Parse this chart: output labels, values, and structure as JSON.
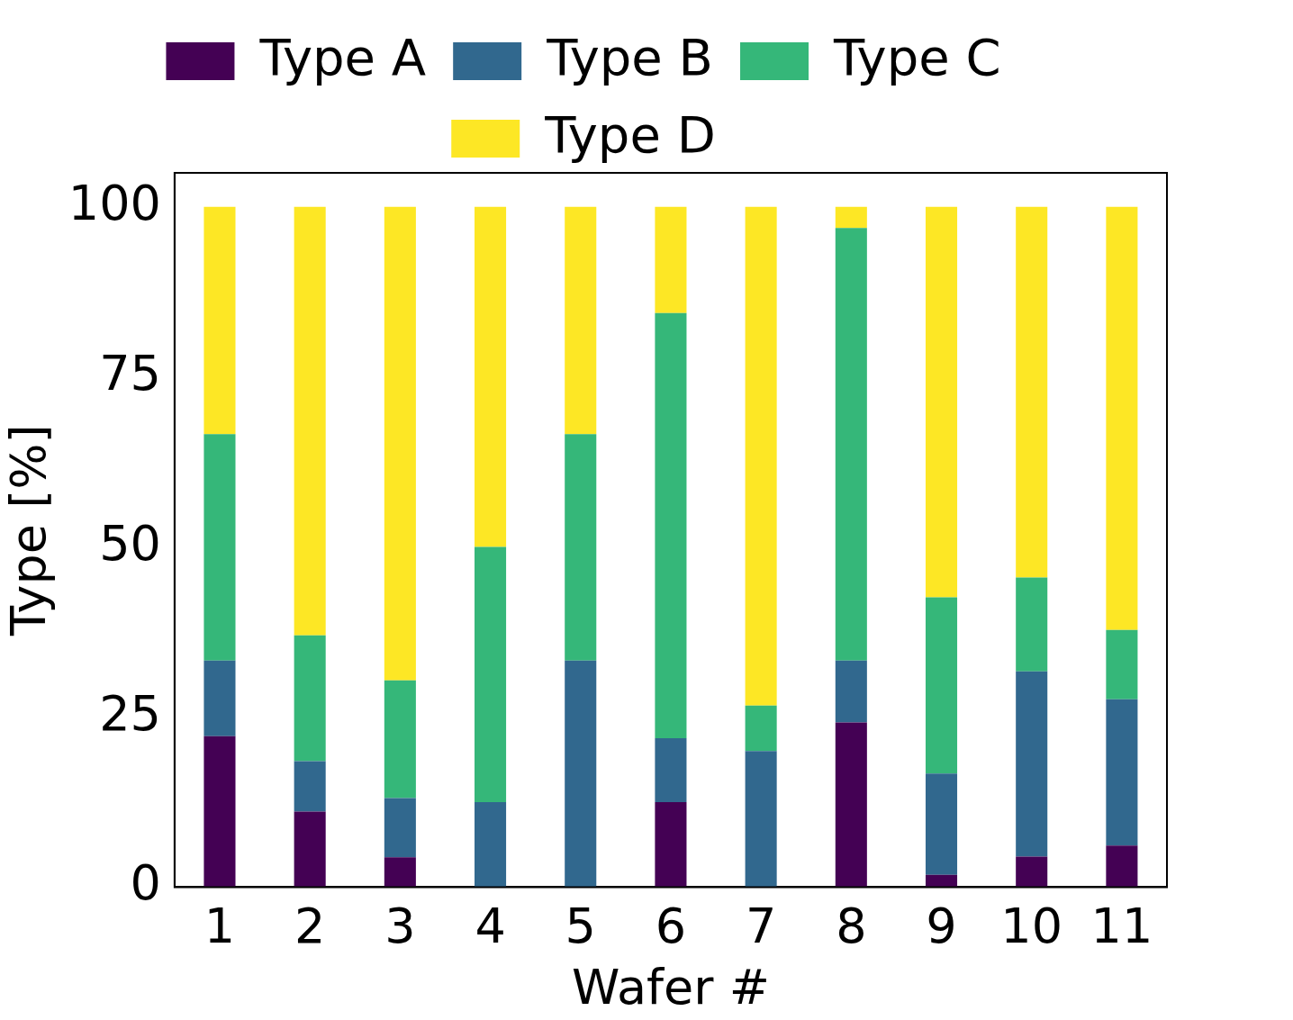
{
  "chart_data": {
    "type": "bar",
    "stacked": true,
    "xlabel": "Wafer #",
    "ylabel": "Type [%]",
    "categories": [
      "1",
      "2",
      "3",
      "4",
      "5",
      "6",
      "7",
      "8",
      "9",
      "10",
      "11"
    ],
    "series": [
      {
        "name": "Type A",
        "color": "#440154",
        "values": [
          22.2,
          11.1,
          4.4,
          0,
          0,
          12.5,
          0,
          24.2,
          1.8,
          4.5,
          6.1
        ]
      },
      {
        "name": "Type B",
        "color": "#31688e",
        "values": [
          11.1,
          7.4,
          8.7,
          12.5,
          33.3,
          9.4,
          20,
          9.1,
          14.9,
          27.2,
          21.5
        ]
      },
      {
        "name": "Type C",
        "color": "#35b779",
        "values": [
          33.3,
          18.5,
          17.3,
          37.5,
          33.3,
          62.5,
          6.7,
          63.6,
          25.9,
          13.8,
          10.2
        ]
      },
      {
        "name": "Type D",
        "color": "#fde725",
        "values": [
          33.4,
          63,
          69.6,
          50,
          33.4,
          15.6,
          73.3,
          3.1,
          57.4,
          54.5,
          62.2
        ]
      }
    ],
    "ylim": [
      0,
      105
    ],
    "yticks": [
      0,
      25,
      50,
      75,
      100
    ],
    "grid": false,
    "legend": "top"
  }
}
